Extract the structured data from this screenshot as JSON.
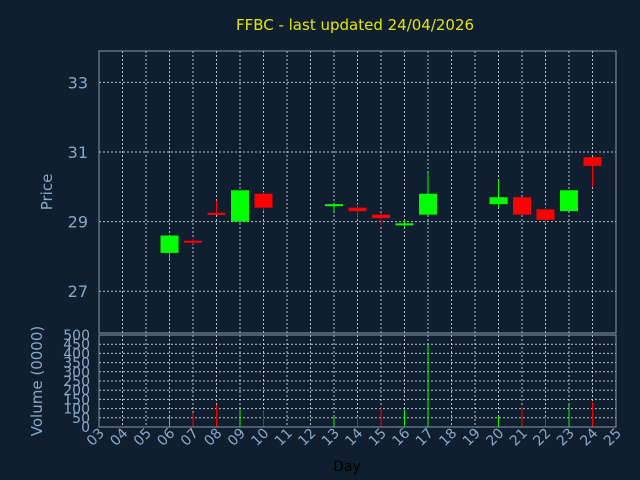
{
  "chart_data": {
    "type": "candlestick",
    "title": "FFBC - last updated 24/04/2026",
    "ylabel": "Price",
    "vol_label": "Volume (0000)",
    "xlabel": "Day",
    "ylim": [
      25.8,
      33.9
    ],
    "y_ticks": [
      27,
      29,
      31,
      33
    ],
    "y_tick_labels": [
      "27",
      "29",
      "31",
      "33"
    ],
    "vol_ylim": [
      0,
      500
    ],
    "vol_ticks": [
      0,
      50,
      100,
      150,
      200,
      250,
      300,
      350,
      400,
      450,
      500
    ],
    "vol_tick_labels": [
      "0",
      "50",
      "100",
      "150",
      "200",
      "250",
      "300",
      "350",
      "400",
      "450",
      "500"
    ],
    "x_ticks": [
      "03",
      "04",
      "05",
      "06",
      "07",
      "08",
      "09",
      "10",
      "11",
      "12",
      "13",
      "14",
      "15",
      "16",
      "17",
      "18",
      "19",
      "20",
      "21",
      "22",
      "23",
      "24",
      "25"
    ],
    "up_color": "#00ff00",
    "down_color": "#ff0000",
    "candles": [
      {
        "day": "06",
        "open": 28.1,
        "high": 28.6,
        "low": 27.9,
        "close": 28.6,
        "volume": 55
      },
      {
        "day": "07",
        "open": 28.45,
        "high": 28.5,
        "low": 28.35,
        "close": 28.4,
        "volume": 75
      },
      {
        "day": "08",
        "open": 29.25,
        "high": 29.6,
        "low": 29.2,
        "close": 29.2,
        "volume": 120
      },
      {
        "day": "09",
        "open": 29.0,
        "high": 29.9,
        "low": 29.0,
        "close": 29.9,
        "volume": 95
      },
      {
        "day": "10",
        "open": 29.8,
        "high": 29.85,
        "low": 29.3,
        "close": 29.4,
        "volume": 85
      },
      {
        "day": "13",
        "open": 29.5,
        "high": 29.55,
        "low": 29.3,
        "close": 29.5,
        "volume": 55
      },
      {
        "day": "14",
        "open": 29.4,
        "high": 29.5,
        "low": 29.1,
        "close": 29.3,
        "volume": 50
      },
      {
        "day": "15",
        "open": 29.2,
        "high": 29.25,
        "low": 28.9,
        "close": 29.1,
        "volume": 110
      },
      {
        "day": "16",
        "open": 28.9,
        "high": 29.05,
        "low": 28.85,
        "close": 28.95,
        "volume": 95
      },
      {
        "day": "17",
        "open": 29.2,
        "high": 30.4,
        "low": 29.2,
        "close": 29.8,
        "volume": 450
      },
      {
        "day": "20",
        "open": 29.5,
        "high": 30.2,
        "low": 29.4,
        "close": 29.7,
        "volume": 60
      },
      {
        "day": "21",
        "open": 29.7,
        "high": 29.7,
        "low": 29.2,
        "close": 29.2,
        "volume": 110
      },
      {
        "day": "22",
        "open": 29.35,
        "high": 29.4,
        "low": 29.0,
        "close": 29.05,
        "volume": 50
      },
      {
        "day": "23",
        "open": 29.3,
        "high": 29.9,
        "low": 29.3,
        "close": 29.9,
        "volume": 120
      },
      {
        "day": "24",
        "open": 30.85,
        "high": 30.85,
        "low": 30.0,
        "close": 30.6,
        "volume": 135
      }
    ]
  }
}
